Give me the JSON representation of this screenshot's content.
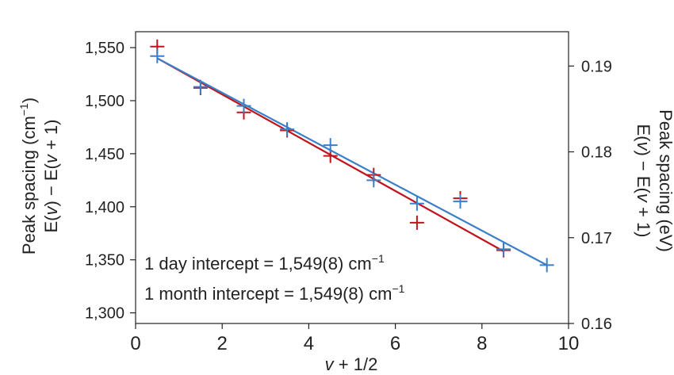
{
  "chart_data": {
    "type": "scatter",
    "xlabel": {
      "var": "v",
      "rest": " + 1/2"
    },
    "ylabel_left": {
      "line1": {
        "pre": "Peak spacing (cm",
        "sup": "−1",
        "post": ")"
      },
      "line2": {
        "a": "E(",
        "v1": "v",
        "b": ") − E(",
        "v2": "v",
        "c": " + 1)"
      }
    },
    "ylabel_right": {
      "line1": "Peak spacing (eV)",
      "line2": {
        "a": "E(",
        "v1": "v",
        "b": ") − E(",
        "v2": "v",
        "c": " + 1)"
      }
    },
    "xlim": [
      0,
      10
    ],
    "ylim": [
      1290,
      1565
    ],
    "ylim_right_ev": [
      0.16,
      0.194
    ],
    "x_ticks": [
      0,
      2,
      4,
      6,
      8,
      10
    ],
    "x_tick_labels": [
      "0",
      "2",
      "4",
      "6",
      "8",
      "10"
    ],
    "y_ticks": [
      1300,
      1350,
      1400,
      1450,
      1500,
      1550
    ],
    "y_tick_labels": [
      "1,300",
      "1,350",
      "1,400",
      "1,450",
      "1,500",
      "1,550"
    ],
    "y_right_ticks": [
      0.16,
      0.17,
      0.18,
      0.19
    ],
    "y_right_tick_labels": [
      "0.16",
      "0.17",
      "0.18",
      "0.19"
    ],
    "grid": false,
    "series": [
      {
        "key": "day",
        "color": "#c0141c",
        "points": [
          {
            "x": 0.5,
            "y": 1551
          },
          {
            "x": 1.5,
            "y": 1512
          },
          {
            "x": 2.5,
            "y": 1489
          },
          {
            "x": 3.5,
            "y": 1472
          },
          {
            "x": 4.5,
            "y": 1448
          },
          {
            "x": 5.5,
            "y": 1430
          },
          {
            "x": 6.5,
            "y": 1385
          },
          {
            "x": 7.5,
            "y": 1408
          },
          {
            "x": 8.5,
            "y": 1359
          }
        ],
        "fit": {
          "x": [
            0.5,
            8.5
          ],
          "y": [
            1540,
            1358
          ]
        }
      },
      {
        "key": "month",
        "color": "#3a7fc8",
        "points": [
          {
            "x": 0.5,
            "y": 1542
          },
          {
            "x": 1.5,
            "y": 1513
          },
          {
            "x": 2.5,
            "y": 1495
          },
          {
            "x": 3.5,
            "y": 1473
          },
          {
            "x": 4.5,
            "y": 1458
          },
          {
            "x": 5.5,
            "y": 1425
          },
          {
            "x": 6.5,
            "y": 1403
          },
          {
            "x": 7.5,
            "y": 1405
          },
          {
            "x": 8.5,
            "y": 1360
          },
          {
            "x": 9.5,
            "y": 1345
          }
        ],
        "fit": {
          "x": [
            0.5,
            9.5
          ],
          "y": [
            1540,
            1345
          ]
        }
      }
    ],
    "annotations": [
      {
        "text": "1 day intercept = 1,549(8) cm",
        "sup": "−1"
      },
      {
        "text": "1 month intercept = 1,549(8) cm",
        "sup": "−1"
      }
    ]
  }
}
